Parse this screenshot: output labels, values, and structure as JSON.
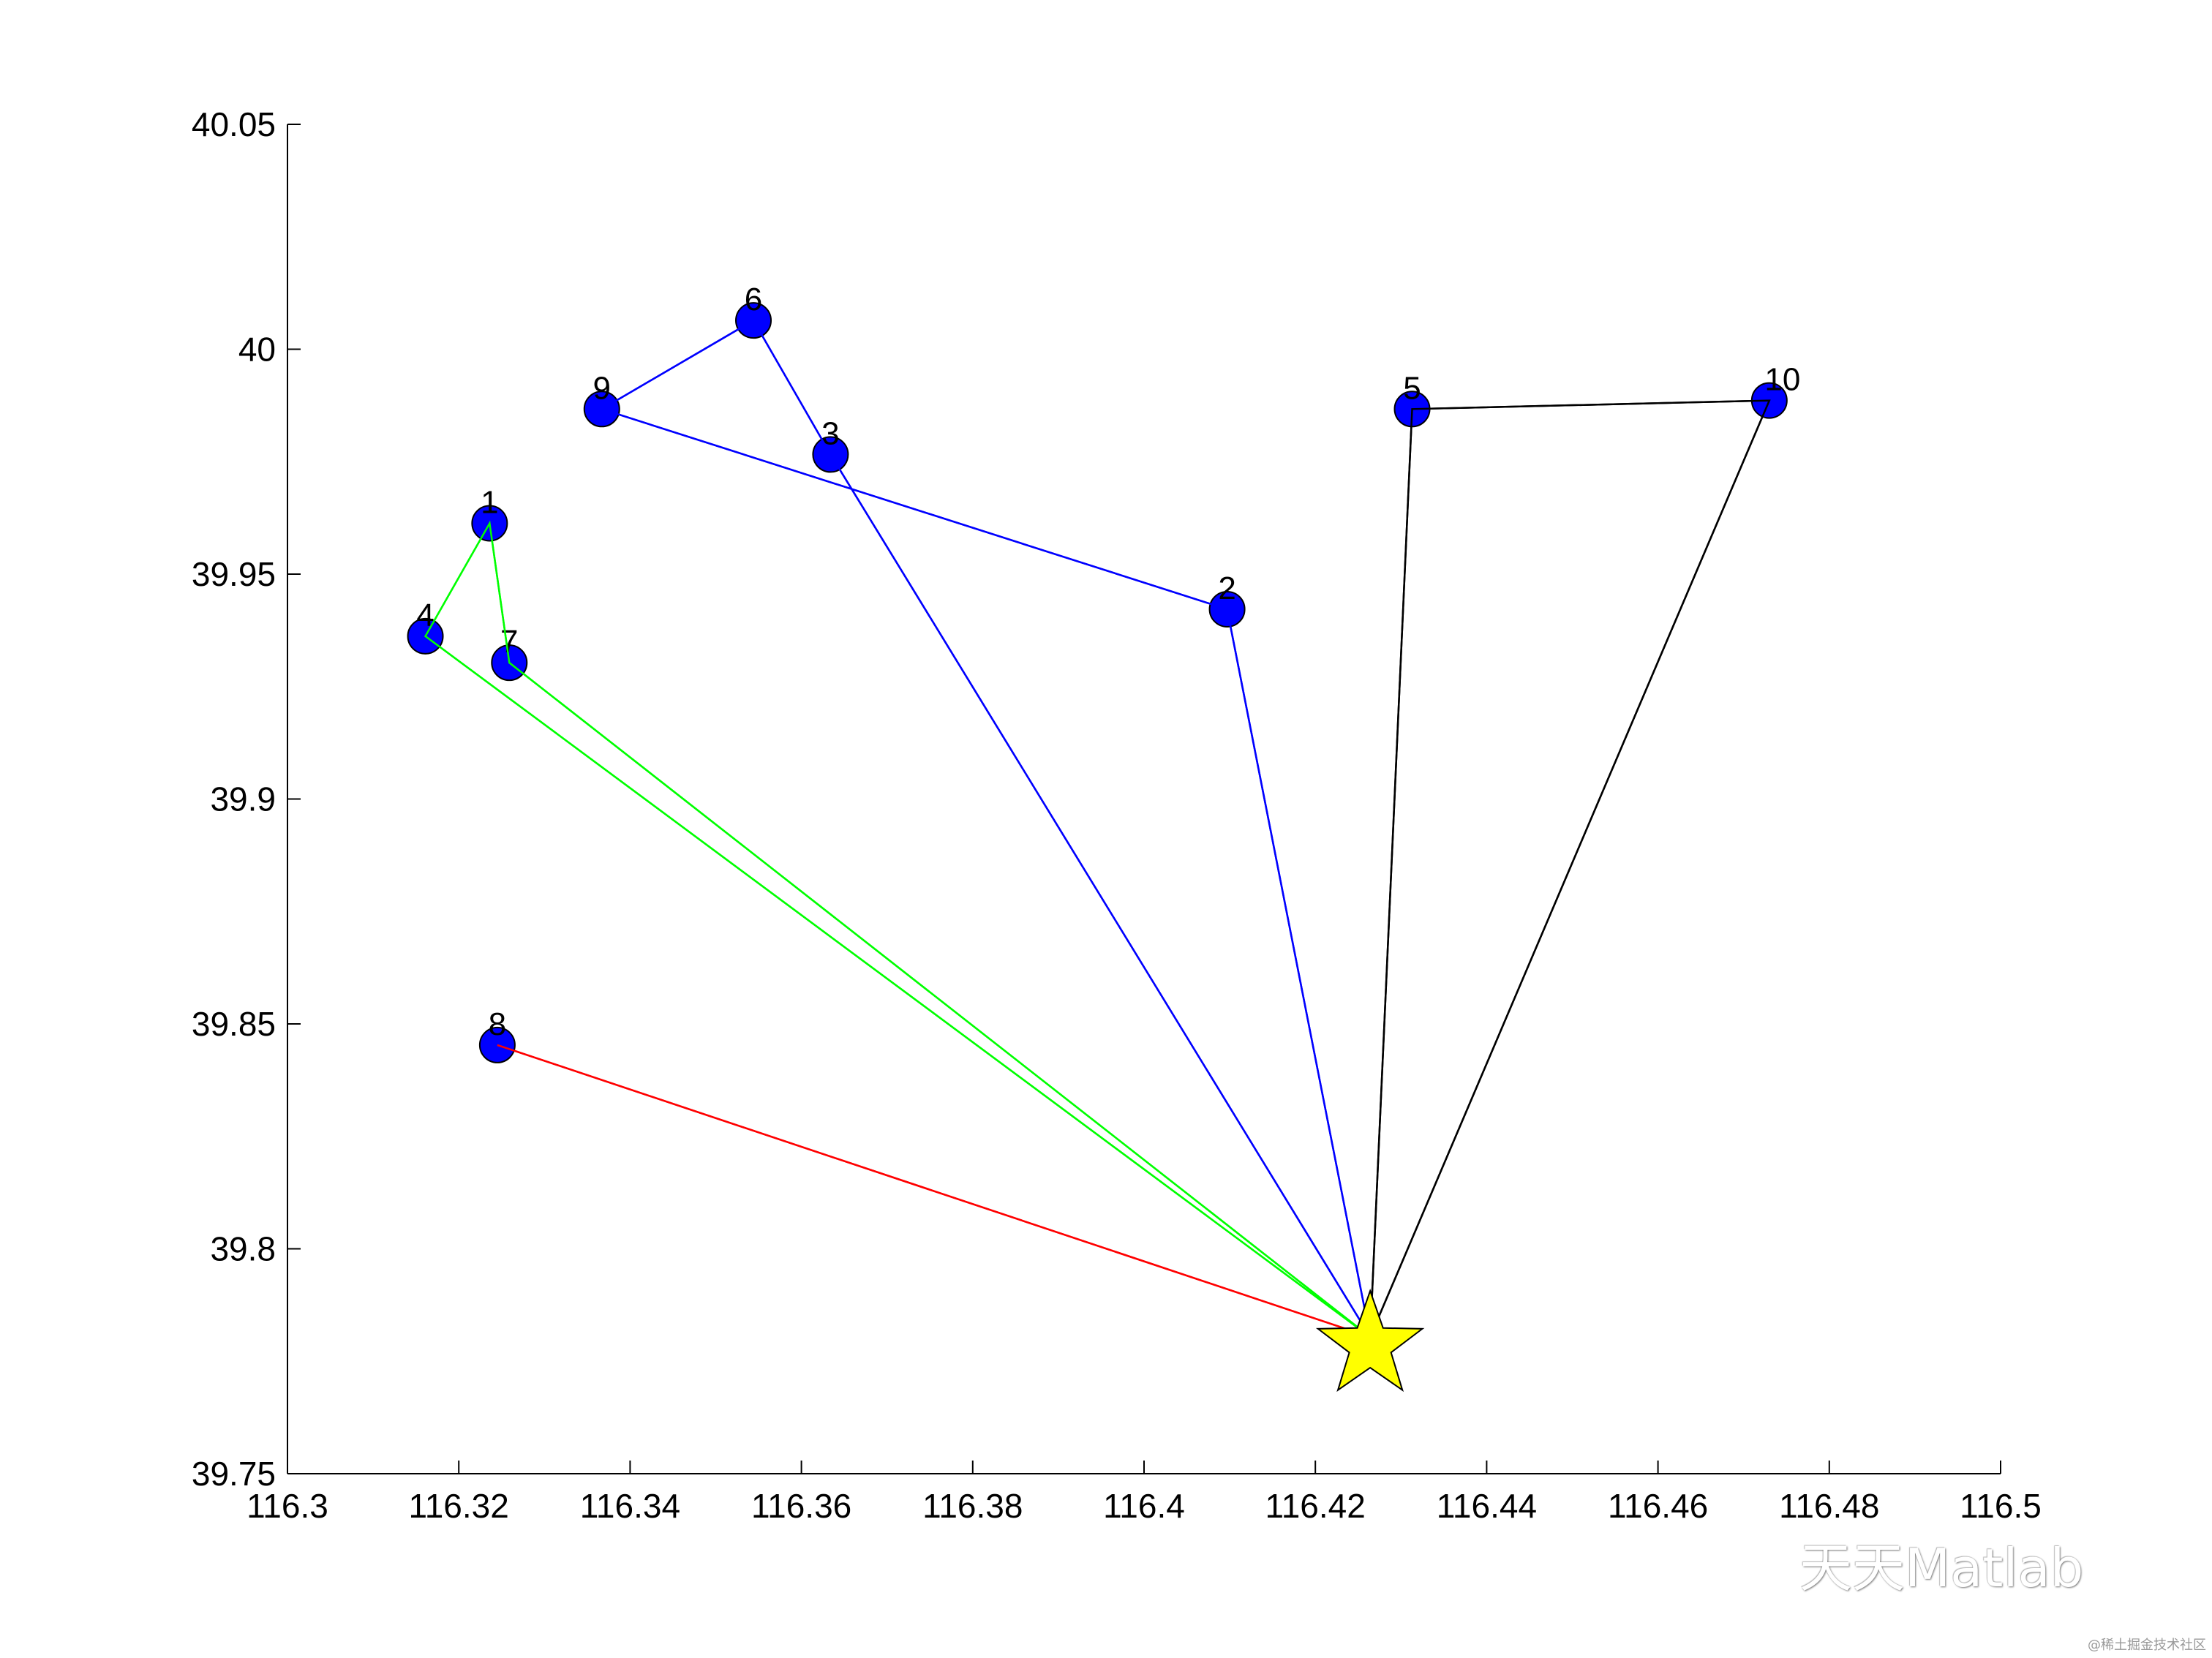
{
  "chart_data": {
    "type": "scatter",
    "title": "",
    "xlabel": "",
    "ylabel": "",
    "xlim": [
      116.3,
      116.5
    ],
    "ylim": [
      39.75,
      40.05
    ],
    "xticks": [
      "116.3",
      "116.32",
      "116.34",
      "116.36",
      "116.38",
      "116.4",
      "116.42",
      "116.44",
      "116.46",
      "116.48",
      "116.5"
    ],
    "yticks": [
      "39.75",
      "39.8",
      "39.85",
      "39.9",
      "39.95",
      "40",
      "40.05"
    ],
    "grid": false,
    "depot": {
      "x": 116.4264,
      "y": 39.7804,
      "marker": "star",
      "color": "#ffff00"
    },
    "points": [
      {
        "label": "1",
        "x": 116.3236,
        "y": 39.9613
      },
      {
        "label": "2",
        "x": 116.4097,
        "y": 39.9422
      },
      {
        "label": "3",
        "x": 116.3634,
        "y": 39.9766
      },
      {
        "label": "4",
        "x": 116.3161,
        "y": 39.9362
      },
      {
        "label": "5",
        "x": 116.4313,
        "y": 39.9867
      },
      {
        "label": "6",
        "x": 116.3544,
        "y": 40.0064
      },
      {
        "label": "7",
        "x": 116.3259,
        "y": 39.9303
      },
      {
        "label": "8",
        "x": 116.3245,
        "y": 39.8453
      },
      {
        "label": "9",
        "x": 116.3367,
        "y": 39.9867
      },
      {
        "label": "10",
        "x": 116.473,
        "y": 39.9886
      }
    ],
    "point_color": "#0000ff",
    "routes": [
      {
        "color": "#0000ff",
        "stops": [
          "3",
          "6",
          "9",
          "2"
        ]
      },
      {
        "color": "#00ff00",
        "stops": [
          "4",
          "1",
          "7"
        ]
      },
      {
        "color": "#000000",
        "stops": [
          "5",
          "10"
        ]
      },
      {
        "color": "#ff0000",
        "stops": [
          "8"
        ]
      }
    ]
  },
  "watermark": {
    "text": "天天Matlab",
    "source": "@稀土掘金技术社区"
  }
}
